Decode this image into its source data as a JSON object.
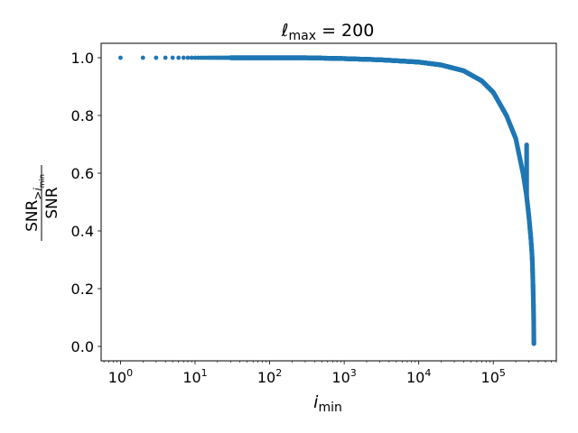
{
  "chart_data": {
    "type": "scatter",
    "title": "ℓmax = 200",
    "title_symbol": "ℓ",
    "title_subscript": "max",
    "title_rest": " = 200",
    "xlabel_main": "i",
    "xlabel_sub": "min",
    "ylabel_numerator_main": "SNR",
    "ylabel_numerator_sub": ">",
    "ylabel_numerator_sub2": "i",
    "ylabel_numerator_sub3": "min",
    "ylabel_denominator": "SNR",
    "x_scale": "log",
    "xlim": [
      0.55,
      700000
    ],
    "ylim": [
      -0.05,
      1.05
    ],
    "x_ticks": [
      {
        "value": 1,
        "base": "10",
        "exp": "0"
      },
      {
        "value": 10,
        "base": "10",
        "exp": "1"
      },
      {
        "value": 100,
        "base": "10",
        "exp": "2"
      },
      {
        "value": 1000,
        "base": "10",
        "exp": "3"
      },
      {
        "value": 10000,
        "base": "10",
        "exp": "4"
      },
      {
        "value": 100000,
        "base": "10",
        "exp": "5"
      }
    ],
    "y_ticks": [
      {
        "value": 0.0,
        "label": "0.0"
      },
      {
        "value": 0.2,
        "label": "0.2"
      },
      {
        "value": 0.4,
        "label": "0.4"
      },
      {
        "value": 0.6,
        "label": "0.6"
      },
      {
        "value": 0.8,
        "label": "0.8"
      },
      {
        "value": 1.0,
        "label": "1.0"
      }
    ],
    "grid": false,
    "marker_color": "#1f77b4",
    "series": [
      {
        "x": [
          1,
          2,
          3,
          4,
          5,
          6,
          7,
          8,
          10,
          20,
          50,
          100,
          300,
          1000,
          3000,
          10000,
          20000,
          40000,
          70000,
          100000,
          150000,
          200000,
          250000,
          280000,
          300000,
          320000,
          330000,
          335000,
          340000,
          345000,
          348000,
          349500,
          350000
        ],
        "y": [
          1.0,
          1.0,
          1.0,
          1.0,
          1.0,
          1.0,
          1.0,
          1.0,
          1.0,
          1.0,
          1.0,
          1.0,
          1.0,
          0.997,
          0.993,
          0.985,
          0.975,
          0.955,
          0.92,
          0.88,
          0.8,
          0.72,
          0.6,
          0.52,
          0.45,
          0.37,
          0.32,
          0.28,
          0.22,
          0.15,
          0.09,
          0.04,
          0.01
        ]
      }
    ]
  }
}
